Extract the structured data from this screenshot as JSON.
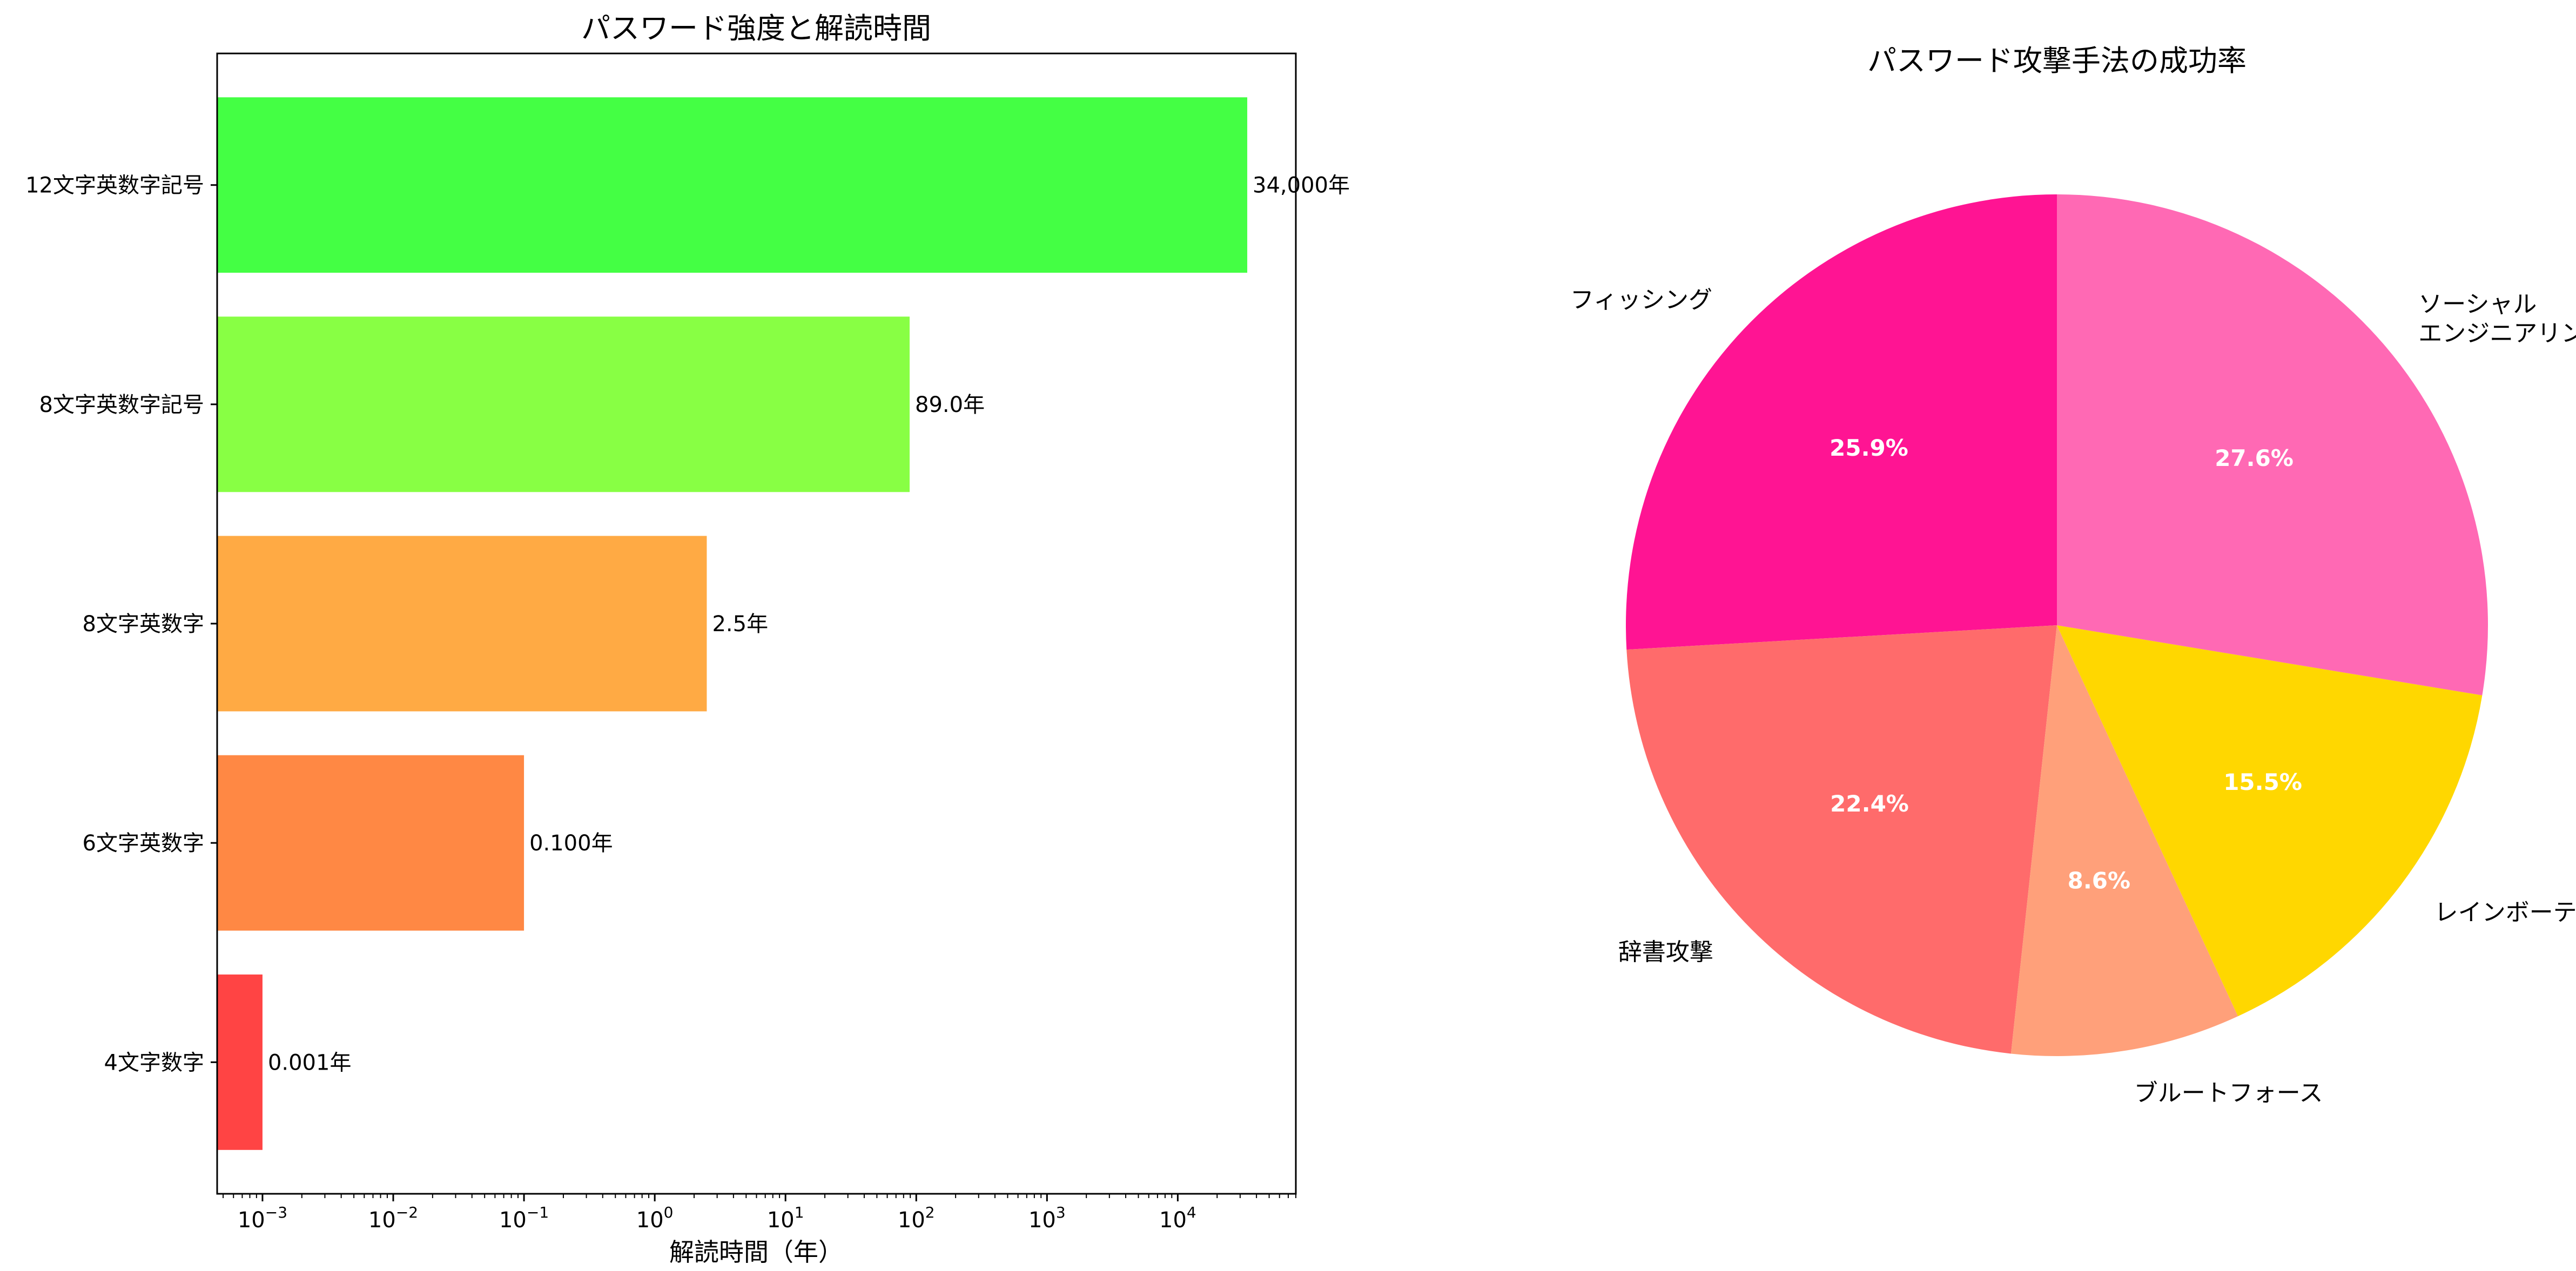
{
  "chart_data": [
    {
      "type": "bar",
      "orientation": "horizontal",
      "title": "パスワード強度と解読時間",
      "xlabel": "解読時間（年）",
      "ylabel": "",
      "x_scale": "log",
      "xlim": [
        0.00045,
        80000
      ],
      "categories": [
        "4文字数字",
        "6文字英数字",
        "8文字英数字",
        "8文字英数字記号",
        "12文字英数字記号"
      ],
      "values": [
        0.001,
        0.1,
        2.5,
        89.0,
        34000
      ],
      "bar_labels": [
        "0.001年",
        "0.100年",
        "2.5年",
        "89.0年",
        "34,000年"
      ],
      "x_ticks": [
        {
          "value": 0.001,
          "base": "10",
          "exp": "−3"
        },
        {
          "value": 0.01,
          "base": "10",
          "exp": "−2"
        },
        {
          "value": 0.1,
          "base": "10",
          "exp": "−1"
        },
        {
          "value": 1,
          "base": "10",
          "exp": "0"
        },
        {
          "value": 10,
          "base": "10",
          "exp": "1"
        },
        {
          "value": 100,
          "base": "10",
          "exp": "2"
        },
        {
          "value": 1000,
          "base": "10",
          "exp": "3"
        },
        {
          "value": 10000,
          "base": "10",
          "exp": "4"
        }
      ],
      "colors": [
        "#ff4444",
        "#ff8844",
        "#ffaa44",
        "#88ff44",
        "#44ff44"
      ],
      "grid": false
    },
    {
      "type": "pie",
      "title": "パスワード攻撃手法の成功率",
      "start_angle_deg": 90,
      "direction": "counterclockwise",
      "slices": [
        {
          "label": "フィッシング",
          "value": 25.9,
          "pct": "25.9%",
          "color": "#ff1493"
        },
        {
          "label": "辞書攻撃",
          "value": 22.4,
          "pct": "22.4%",
          "color": "#ff6b6b"
        },
        {
          "label": "ブルートフォース",
          "value": 8.6,
          "pct": "8.6%",
          "color": "#ffa07a"
        },
        {
          "label": "レインボーテーブル",
          "value": 15.5,
          "pct": "15.5%",
          "color": "#ffd700"
        },
        {
          "label": "ソーシャル\nエンジニアリング",
          "value": 27.6,
          "pct": "27.6%",
          "color": "#ff69b4"
        }
      ]
    }
  ]
}
